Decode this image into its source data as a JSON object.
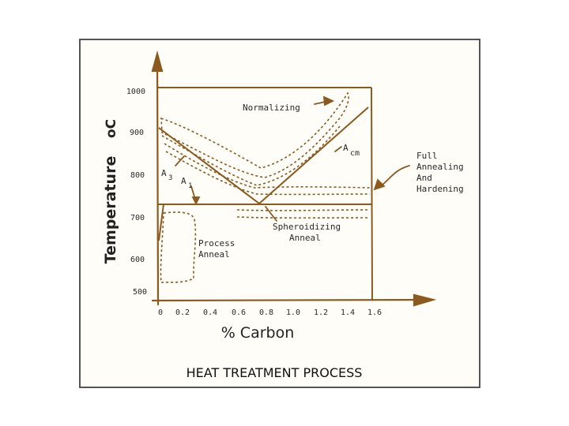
{
  "figure": {
    "caption": "HEAT TREATMENT PROCESS",
    "x_axis_label": "% Carbon",
    "y_axis_label": "Temperature",
    "y_axis_unit": "oC",
    "x_ticks": [
      "0",
      "0.2",
      "0.4",
      "0.6",
      "0.8",
      "1.0",
      "1.2",
      "1.4",
      "1.6"
    ],
    "y_ticks": [
      "1000",
      "900",
      "800",
      "700",
      "600",
      "500"
    ],
    "x_range": [
      0,
      1.6
    ],
    "y_range": [
      500,
      1000
    ]
  },
  "labels": {
    "normalizing": "Normalizing",
    "a3_main": "A",
    "a3_sub": "3",
    "a1_main": "A",
    "a1_sub": "1",
    "acm_main": "A",
    "acm_sub": "cm",
    "full_annealing": [
      "Full",
      "Annealing",
      "And",
      "Hardening"
    ],
    "process_anneal": [
      "Process",
      "Anneal"
    ],
    "spheroidizing_anneal": [
      "Spheroidizing",
      "Anneal"
    ]
  },
  "colors": {
    "ink": "#8a5a1f",
    "text": "#2a2a2a",
    "frame": "#555555"
  }
}
